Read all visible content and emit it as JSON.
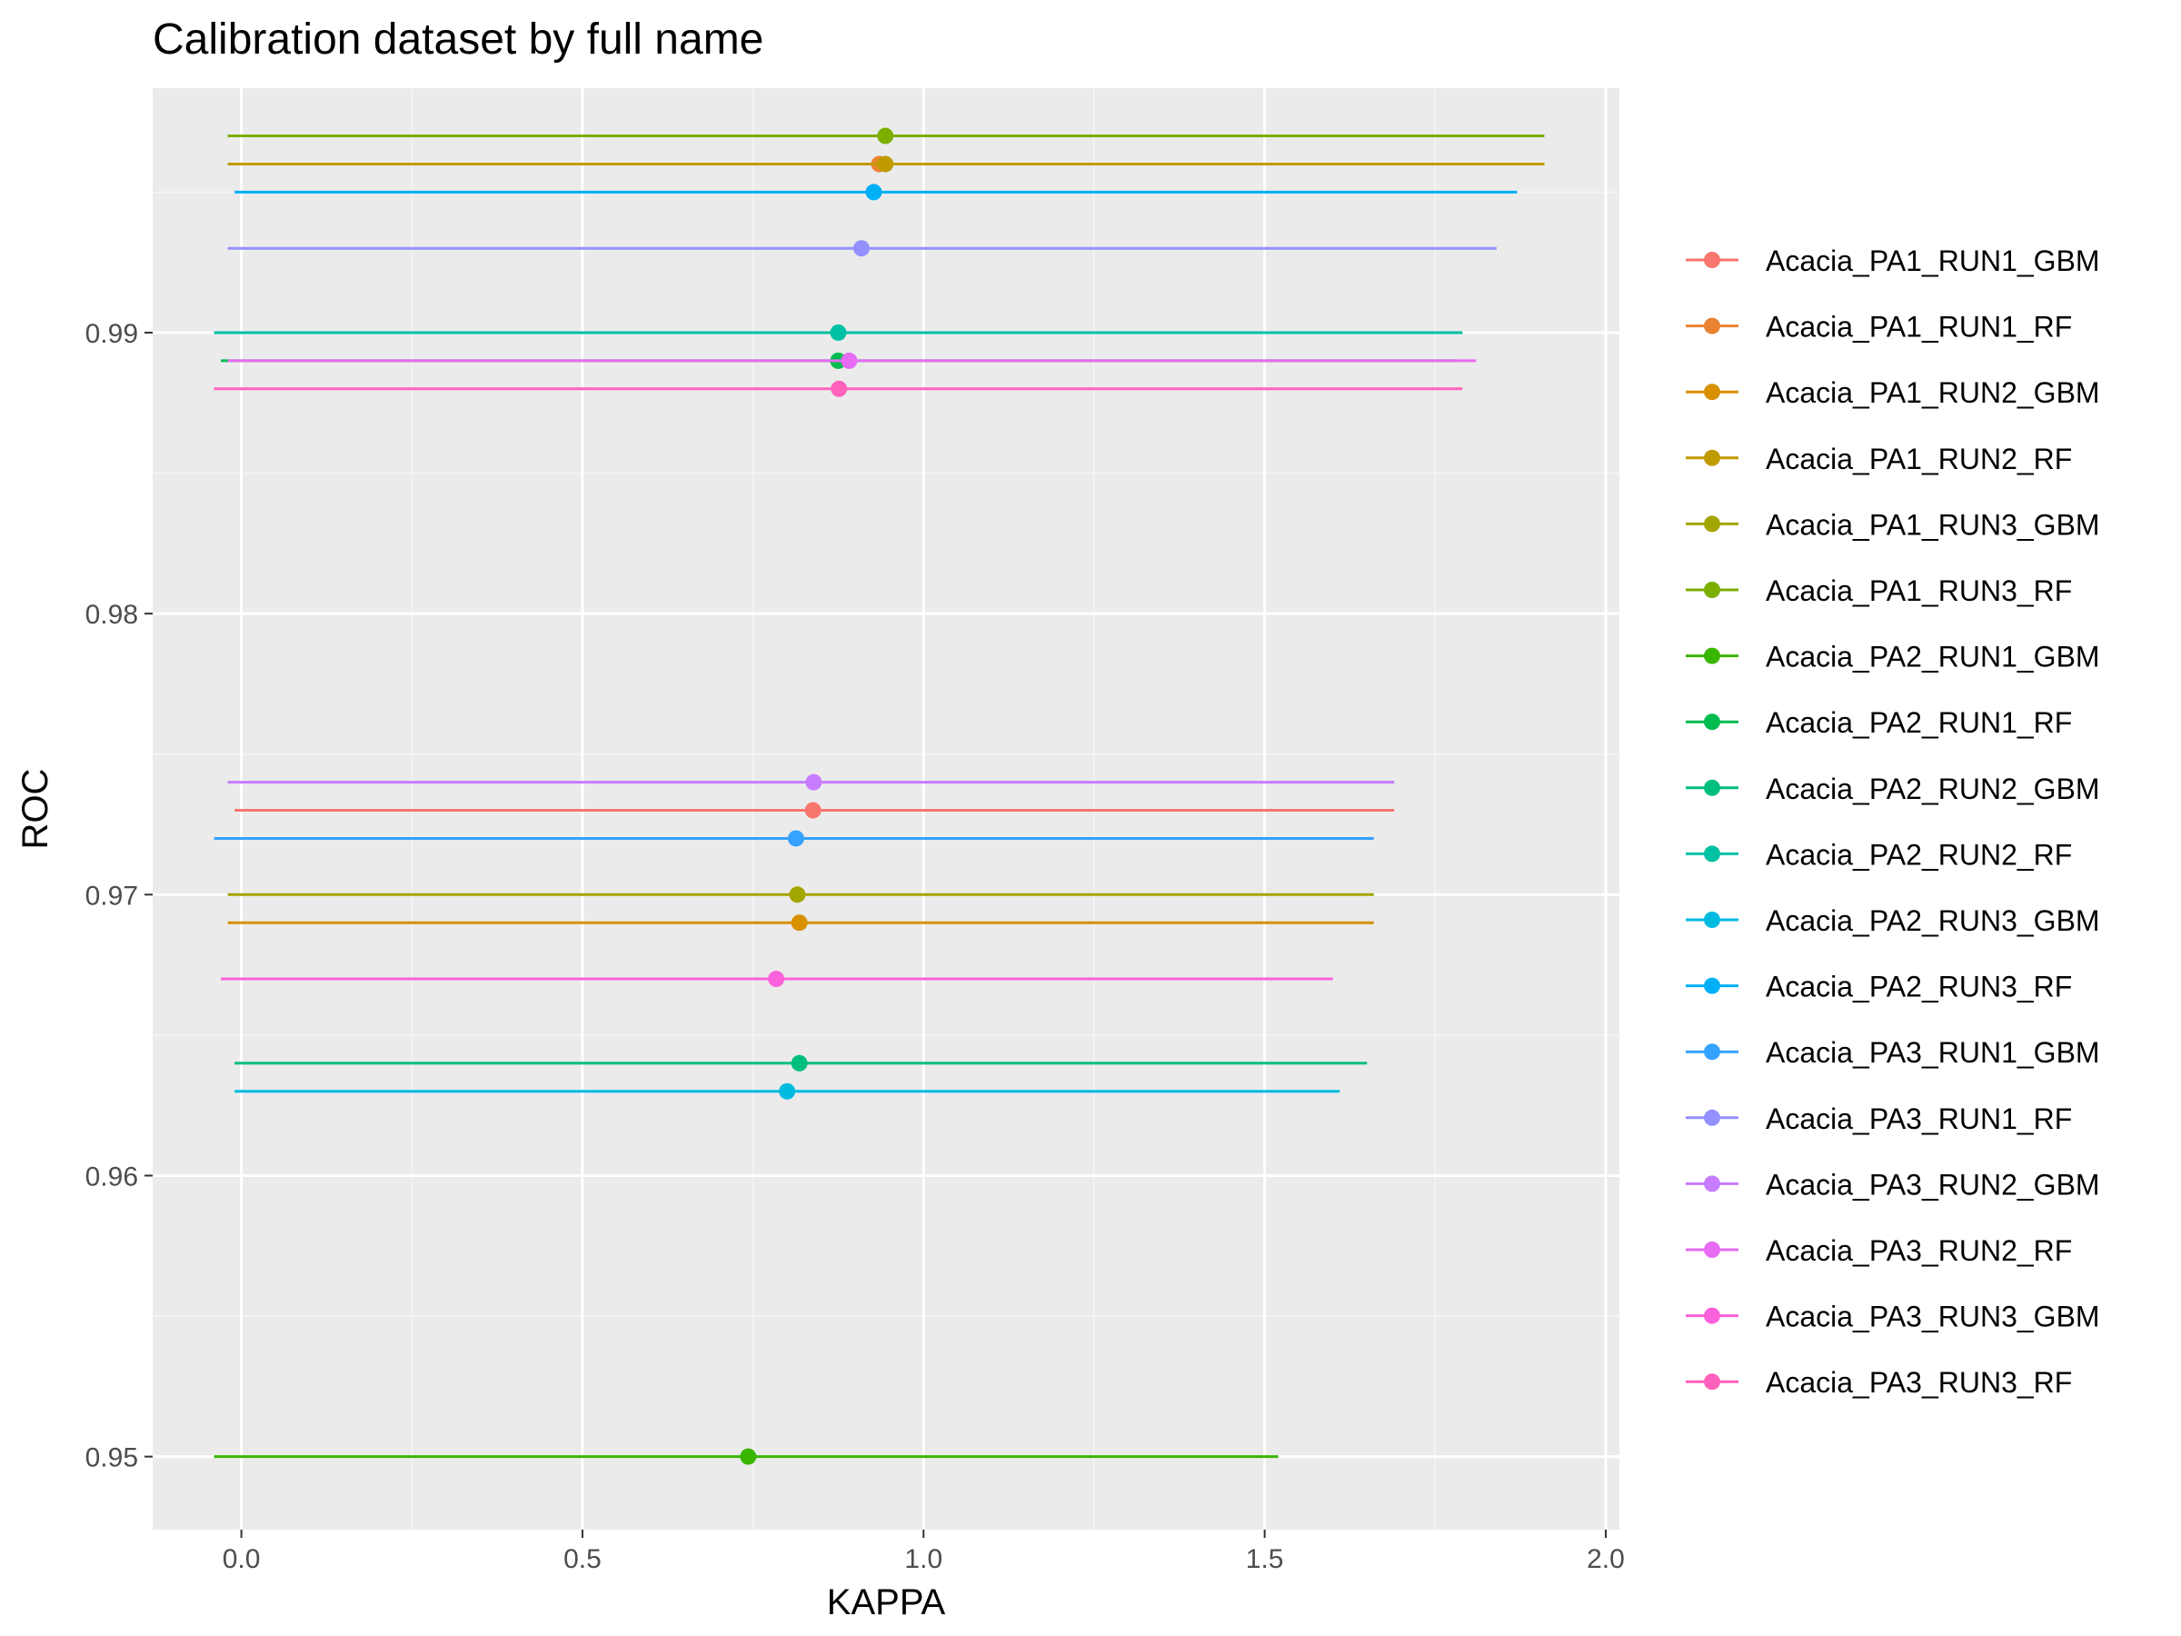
{
  "chart_data": {
    "type": "scatter",
    "title": "Calibration dataset by full name",
    "xlabel": "KAPPA",
    "ylabel": "ROC",
    "xlim": [
      -0.13,
      2.02
    ],
    "ylim": [
      0.9474,
      0.9987
    ],
    "xticks": [
      0.0,
      0.5,
      1.0,
      1.5,
      2.0
    ],
    "xtick_labels": [
      "0.0",
      "0.5",
      "1.0",
      "1.5",
      "2.0"
    ],
    "yticks": [
      0.95,
      0.96,
      0.97,
      0.98,
      0.99
    ],
    "ytick_labels": [
      "0.95",
      "0.96",
      "0.97",
      "0.98",
      "0.99"
    ],
    "grid": true,
    "legend_position": "right",
    "error_bars": "horizontal",
    "series": [
      {
        "name": "Acacia_PA1_RUN1_GBM",
        "color": "#F8766D",
        "x": 0.838,
        "y": 0.973,
        "xmin": -0.01,
        "xmax": 1.69
      },
      {
        "name": "Acacia_PA1_RUN1_RF",
        "color": "#EA8331",
        "x": 0.935,
        "y": 0.996,
        "xmin": -0.02,
        "xmax": 1.91
      },
      {
        "name": "Acacia_PA1_RUN2_GBM",
        "color": "#D89000",
        "x": 0.818,
        "y": 0.969,
        "xmin": -0.02,
        "xmax": 1.66
      },
      {
        "name": "Acacia_PA1_RUN2_RF",
        "color": "#C09B00",
        "x": 0.944,
        "y": 0.996,
        "xmin": -0.02,
        "xmax": 1.91
      },
      {
        "name": "Acacia_PA1_RUN3_GBM",
        "color": "#A3A500",
        "x": 0.815,
        "y": 0.97,
        "xmin": -0.02,
        "xmax": 1.66
      },
      {
        "name": "Acacia_PA1_RUN3_RF",
        "color": "#7CAE00",
        "x": 0.944,
        "y": 0.997,
        "xmin": -0.02,
        "xmax": 1.91
      },
      {
        "name": "Acacia_PA2_RUN1_GBM",
        "color": "#39B600",
        "x": 0.743,
        "y": 0.95,
        "xmin": -0.04,
        "xmax": 1.52
      },
      {
        "name": "Acacia_PA2_RUN1_RF",
        "color": "#00BB4E",
        "x": 0.875,
        "y": 0.989,
        "xmin": -0.03,
        "xmax": 1.78
      },
      {
        "name": "Acacia_PA2_RUN2_GBM",
        "color": "#00BF7D",
        "x": 0.818,
        "y": 0.964,
        "xmin": -0.01,
        "xmax": 1.65
      },
      {
        "name": "Acacia_PA2_RUN2_RF",
        "color": "#00C1A3",
        "x": 0.875,
        "y": 0.99,
        "xmin": -0.04,
        "xmax": 1.79
      },
      {
        "name": "Acacia_PA2_RUN3_GBM",
        "color": "#00BAE0",
        "x": 0.8,
        "y": 0.963,
        "xmin": -0.01,
        "xmax": 1.61
      },
      {
        "name": "Acacia_PA2_RUN3_RF",
        "color": "#00B0F6",
        "x": 0.927,
        "y": 0.995,
        "xmin": -0.01,
        "xmax": 1.87
      },
      {
        "name": "Acacia_PA3_RUN1_GBM",
        "color": "#35A2FF",
        "x": 0.813,
        "y": 0.972,
        "xmin": -0.04,
        "xmax": 1.66
      },
      {
        "name": "Acacia_PA3_RUN1_RF",
        "color": "#9590FF",
        "x": 0.909,
        "y": 0.993,
        "xmin": -0.02,
        "xmax": 1.84
      },
      {
        "name": "Acacia_PA3_RUN2_GBM",
        "color": "#C77CFF",
        "x": 0.839,
        "y": 0.974,
        "xmin": -0.02,
        "xmax": 1.69
      },
      {
        "name": "Acacia_PA3_RUN2_RF",
        "color": "#E76BF3",
        "x": 0.891,
        "y": 0.989,
        "xmin": -0.02,
        "xmax": 1.81
      },
      {
        "name": "Acacia_PA3_RUN3_GBM",
        "color": "#FA62DB",
        "x": 0.784,
        "y": 0.967,
        "xmin": -0.03,
        "xmax": 1.6
      },
      {
        "name": "Acacia_PA3_RUN3_RF",
        "color": "#FF62BC",
        "x": 0.876,
        "y": 0.988,
        "xmin": -0.04,
        "xmax": 1.79
      }
    ]
  },
  "colors": {
    "panel_background": "#EBEBEB",
    "grid_major": "#FFFFFF",
    "grid_minor": "#F5F5F5",
    "tick_label": "#4D4D4D"
  }
}
